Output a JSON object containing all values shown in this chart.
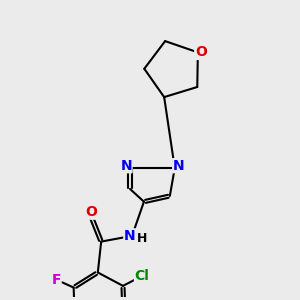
{
  "background_color": "#ebebeb",
  "atom_colors": {
    "N": "#0000ee",
    "O_thf": "#dd0000",
    "O_carbonyl": "#dd0000",
    "F": "#cc00cc",
    "Cl": "#008800",
    "C": "#000000",
    "H": "#000000"
  },
  "bond_color": "#000000",
  "bond_width": 1.5,
  "font_size_atoms": 10,
  "background": "#e8e8e8"
}
